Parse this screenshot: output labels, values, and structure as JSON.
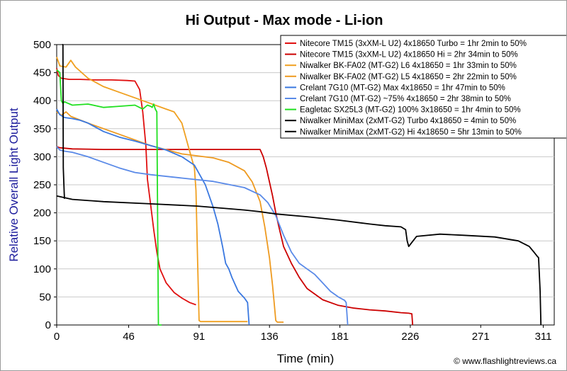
{
  "chart_data": {
    "type": "line",
    "title": "Hi Output - Max mode - Li-ion",
    "xlabel": "Time (min)",
    "ylabel": "Relative Overall Light Output",
    "credit": "© www.flashlightreviews.ca",
    "xlim": [
      0,
      318
    ],
    "ylim": [
      0,
      500
    ],
    "xticks": [
      0,
      46,
      91,
      136,
      181,
      226,
      271,
      311
    ],
    "yticks": [
      0,
      50,
      100,
      150,
      200,
      250,
      300,
      350,
      400,
      450,
      500
    ],
    "grid": true,
    "legend_position": "top-right",
    "series": [
      {
        "name": "Nitecore TM15 (3xXM-L U2) 4x18650 Turbo = 1hr 2min to 50%",
        "color": "#e01010",
        "x": [
          0,
          1,
          3,
          8,
          15,
          25,
          35,
          45,
          50,
          53,
          55,
          57,
          58,
          60,
          62,
          64,
          66,
          70,
          75,
          80,
          85,
          89
        ],
        "y": [
          458,
          445,
          440,
          438,
          438,
          437,
          437,
          436,
          435,
          420,
          380,
          320,
          260,
          215,
          170,
          130,
          100,
          75,
          58,
          48,
          40,
          36
        ]
      },
      {
        "name": "Nitecore TM15 (3xXM-L U2) 4x18650 Hi = 2hr 34min to 50%",
        "color": "#cc0000",
        "x": [
          0,
          2,
          10,
          30,
          60,
          90,
          110,
          125,
          130,
          132,
          134,
          136,
          138,
          140,
          142,
          145,
          150,
          155,
          160,
          170,
          180,
          190,
          200,
          210,
          220,
          225,
          227,
          227.5
        ],
        "y": [
          318,
          316,
          314,
          313,
          313,
          313,
          313,
          313,
          313,
          300,
          280,
          255,
          230,
          200,
          175,
          140,
          110,
          85,
          65,
          45,
          35,
          30,
          27,
          25,
          22,
          21,
          20,
          0
        ]
      },
      {
        "name": "Niwalker BK-FA02 (MT-G2) L6 4x18650 = 1hr 33min to 50%",
        "color": "#f0a020",
        "x": [
          0,
          2,
          6,
          9,
          12,
          20,
          30,
          40,
          50,
          60,
          70,
          75,
          80,
          84,
          86,
          88,
          89,
          90,
          91,
          92,
          100,
          110,
          122
        ],
        "y": [
          478,
          462,
          460,
          472,
          460,
          440,
          425,
          415,
          405,
          395,
          385,
          380,
          360,
          320,
          300,
          280,
          240,
          120,
          8,
          6,
          6,
          6,
          6
        ]
      },
      {
        "name": "Niwalker BK-FA02 (MT-G2) L5 4x18650 = 2hr 22min to 50%",
        "color": "#ee9a20",
        "x": [
          0,
          3,
          6,
          9,
          20,
          40,
          60,
          80,
          100,
          110,
          120,
          125,
          130,
          133,
          136,
          138,
          139,
          140,
          141,
          143,
          145
        ],
        "y": [
          380,
          374,
          380,
          372,
          360,
          340,
          320,
          305,
          298,
          290,
          275,
          255,
          220,
          175,
          120,
          70,
          40,
          8,
          5,
          5,
          5
        ]
      },
      {
        "name": "Crelant 7G10 (MT-G2) Max 4x18650 = 1hr 47min to 50%",
        "color": "#3a78e0",
        "x": [
          0,
          2,
          5,
          10,
          15,
          20,
          30,
          40,
          50,
          60,
          70,
          80,
          88,
          95,
          100,
          103,
          106,
          108,
          110,
          112,
          116,
          120,
          122,
          123
        ],
        "y": [
          385,
          375,
          370,
          368,
          365,
          360,
          345,
          335,
          328,
          320,
          312,
          300,
          285,
          250,
          210,
          180,
          140,
          110,
          100,
          85,
          60,
          48,
          40,
          0
        ]
      },
      {
        "name": "Crelant 7G10 (MT-G2) ~75% 4x18650 = 2hr 38min to 50%",
        "color": "#5a8ae8",
        "x": [
          0,
          2,
          5,
          10,
          20,
          30,
          40,
          50,
          60,
          80,
          100,
          120,
          130,
          135,
          140,
          145,
          150,
          155,
          160,
          165,
          170,
          175,
          180,
          184,
          185,
          186
        ],
        "y": [
          318,
          312,
          310,
          308,
          300,
          290,
          280,
          272,
          268,
          262,
          256,
          245,
          232,
          218,
          195,
          160,
          130,
          110,
          100,
          90,
          75,
          60,
          50,
          44,
          40,
          0
        ]
      },
      {
        "name": "Eagletac SX25L3 (MT-G2) 100% 3x18650 = 1hr 4min to 50%",
        "color": "#20e020",
        "x": [
          0,
          2,
          3,
          4,
          5,
          10,
          20,
          30,
          40,
          50,
          55,
          58,
          60,
          61,
          62,
          63,
          64,
          65,
          66,
          67
        ],
        "y": [
          455,
          450,
          400,
          395,
          398,
          392,
          394,
          388,
          390,
          392,
          385,
          392,
          390,
          388,
          394,
          385,
          380,
          0,
          0,
          0
        ]
      },
      {
        "name": "Niwalker MiniMax (2xMT-G2) Turbo 4x18650 = 4min to 50%",
        "color": "#000000",
        "x": [
          3.5,
          4,
          4.2,
          4.8,
          5
        ],
        "y": [
          500,
          500,
          280,
          235,
          225
        ]
      },
      {
        "name": "Niwalker MiniMax (2xMT-G2) Hi 4x18650 = 5hr 13min to 50%",
        "color": "#000000",
        "x": [
          0,
          10,
          30,
          60,
          90,
          120,
          130,
          140,
          160,
          180,
          200,
          210,
          220,
          223,
          224,
          225,
          230,
          245,
          260,
          280,
          295,
          302,
          305,
          307,
          308,
          309,
          309.5
        ],
        "y": [
          230,
          224,
          220,
          216,
          212,
          205,
          202,
          198,
          193,
          187,
          180,
          177,
          175,
          170,
          150,
          140,
          158,
          162,
          160,
          157,
          150,
          140,
          130,
          123,
          120,
          60,
          0
        ]
      }
    ]
  }
}
